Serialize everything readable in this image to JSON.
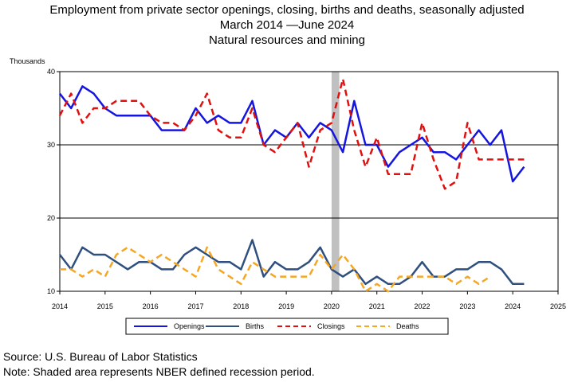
{
  "title_lines": [
    "Employment from private sector openings, closing, births and deaths, seasonally adjusted",
    "March 2014 —June 2024",
    "Natural resources and mining"
  ],
  "footer": {
    "source": "Source: U.S. Bureau of Labor Statistics",
    "note": "Note: Shaded area represents NBER defined recession period."
  },
  "chart_data": {
    "type": "line",
    "ylabel": "Thousands",
    "xlim": [
      2014,
      2025
    ],
    "ylim": [
      10,
      40
    ],
    "x_ticks": [
      "2014",
      "2015",
      "2016",
      "2017",
      "2018",
      "2019",
      "2020",
      "2021",
      "2022",
      "2023",
      "2024",
      "2025"
    ],
    "y_ticks": [
      "10",
      "20",
      "30",
      "40"
    ],
    "grid": "horizontal at 20 and 30",
    "legend_position": "bottom",
    "recession": {
      "start": 2020.0,
      "end": 2020.17,
      "color": "#c0c0c0"
    },
    "series": [
      {
        "name": "Openings",
        "color": "#1515e0",
        "dash": "solid",
        "x": [
          2014.0,
          2014.25,
          2014.5,
          2014.75,
          2015.0,
          2015.25,
          2015.5,
          2015.75,
          2016.0,
          2016.25,
          2016.5,
          2016.75,
          2017.0,
          2017.25,
          2017.5,
          2017.75,
          2018.0,
          2018.25,
          2018.5,
          2018.75,
          2019.0,
          2019.25,
          2019.5,
          2019.75,
          2020.0,
          2020.25,
          2020.5,
          2020.75,
          2021.0,
          2021.25,
          2021.5,
          2021.75,
          2022.0,
          2022.25,
          2022.5,
          2022.75,
          2023.0,
          2023.25,
          2023.5,
          2023.75,
          2024.0,
          2024.25
        ],
        "values": [
          37,
          35,
          38,
          37,
          35,
          34,
          34,
          34,
          34,
          32,
          32,
          32,
          35,
          33,
          34,
          33,
          33,
          36,
          30,
          32,
          31,
          33,
          31,
          33,
          32,
          29,
          36,
          30,
          30,
          27,
          29,
          30,
          31,
          29,
          29,
          28,
          30,
          32,
          30,
          32,
          25,
          27
        ]
      },
      {
        "name": "Births",
        "color": "#2f4f7f",
        "dash": "solid",
        "x": [
          2014.0,
          2014.25,
          2014.5,
          2014.75,
          2015.0,
          2015.25,
          2015.5,
          2015.75,
          2016.0,
          2016.25,
          2016.5,
          2016.75,
          2017.0,
          2017.25,
          2017.5,
          2017.75,
          2018.0,
          2018.25,
          2018.5,
          2018.75,
          2019.0,
          2019.25,
          2019.5,
          2019.75,
          2020.0,
          2020.25,
          2020.5,
          2020.75,
          2021.0,
          2021.25,
          2021.5,
          2021.75,
          2022.0,
          2022.25,
          2022.5,
          2022.75,
          2023.0,
          2023.25,
          2023.5,
          2023.75,
          2024.0,
          2024.25
        ],
        "values": [
          15,
          13,
          16,
          15,
          15,
          14,
          13,
          14,
          14,
          13,
          13,
          15,
          16,
          15,
          14,
          14,
          13,
          17,
          12,
          14,
          13,
          13,
          14,
          16,
          13,
          12,
          13,
          11,
          12,
          11,
          11,
          12,
          14,
          12,
          12,
          13,
          13,
          14,
          14,
          13,
          11,
          11
        ]
      },
      {
        "name": "Closings",
        "color": "#e01010",
        "dash": "dashed",
        "x": [
          2014.0,
          2014.25,
          2014.5,
          2014.75,
          2015.0,
          2015.25,
          2015.5,
          2015.75,
          2016.0,
          2016.25,
          2016.5,
          2016.75,
          2017.0,
          2017.25,
          2017.5,
          2017.75,
          2018.0,
          2018.25,
          2018.5,
          2018.75,
          2019.0,
          2019.25,
          2019.5,
          2019.75,
          2020.0,
          2020.25,
          2020.5,
          2020.75,
          2021.0,
          2021.25,
          2021.5,
          2021.75,
          2022.0,
          2022.25,
          2022.5,
          2022.75,
          2023.0,
          2023.25,
          2023.5,
          2023.75,
          2024.0,
          2024.25
        ],
        "values": [
          34,
          37,
          33,
          35,
          35,
          36,
          36,
          36,
          34,
          33,
          33,
          32,
          34,
          37,
          32,
          31,
          31,
          35,
          30,
          29,
          31,
          33,
          27,
          32,
          33,
          39,
          32,
          27,
          31,
          26,
          26,
          26,
          33,
          28,
          24,
          25,
          33,
          28,
          28,
          28,
          28,
          28
        ]
      },
      {
        "name": "Deaths",
        "color": "#f5a623",
        "dash": "dashed",
        "x": [
          2014.0,
          2014.25,
          2014.5,
          2014.75,
          2015.0,
          2015.25,
          2015.5,
          2015.75,
          2016.0,
          2016.25,
          2016.5,
          2016.75,
          2017.0,
          2017.25,
          2017.5,
          2017.75,
          2018.0,
          2018.25,
          2018.5,
          2018.75,
          2019.0,
          2019.25,
          2019.5,
          2019.75,
          2020.0,
          2020.25,
          2020.5,
          2020.75,
          2021.0,
          2021.25,
          2021.5,
          2021.75,
          2022.0,
          2022.25,
          2022.5,
          2022.75,
          2023.0,
          2023.25,
          2023.5
        ],
        "values": [
          13,
          13,
          12,
          13,
          12,
          15,
          16,
          15,
          14,
          15,
          14,
          13,
          12,
          16,
          13,
          12,
          11,
          14,
          13,
          12,
          12,
          12,
          12,
          15,
          13,
          15,
          13,
          10,
          11,
          10,
          12,
          12,
          12,
          12,
          12,
          11,
          12,
          11,
          12
        ]
      }
    ]
  }
}
